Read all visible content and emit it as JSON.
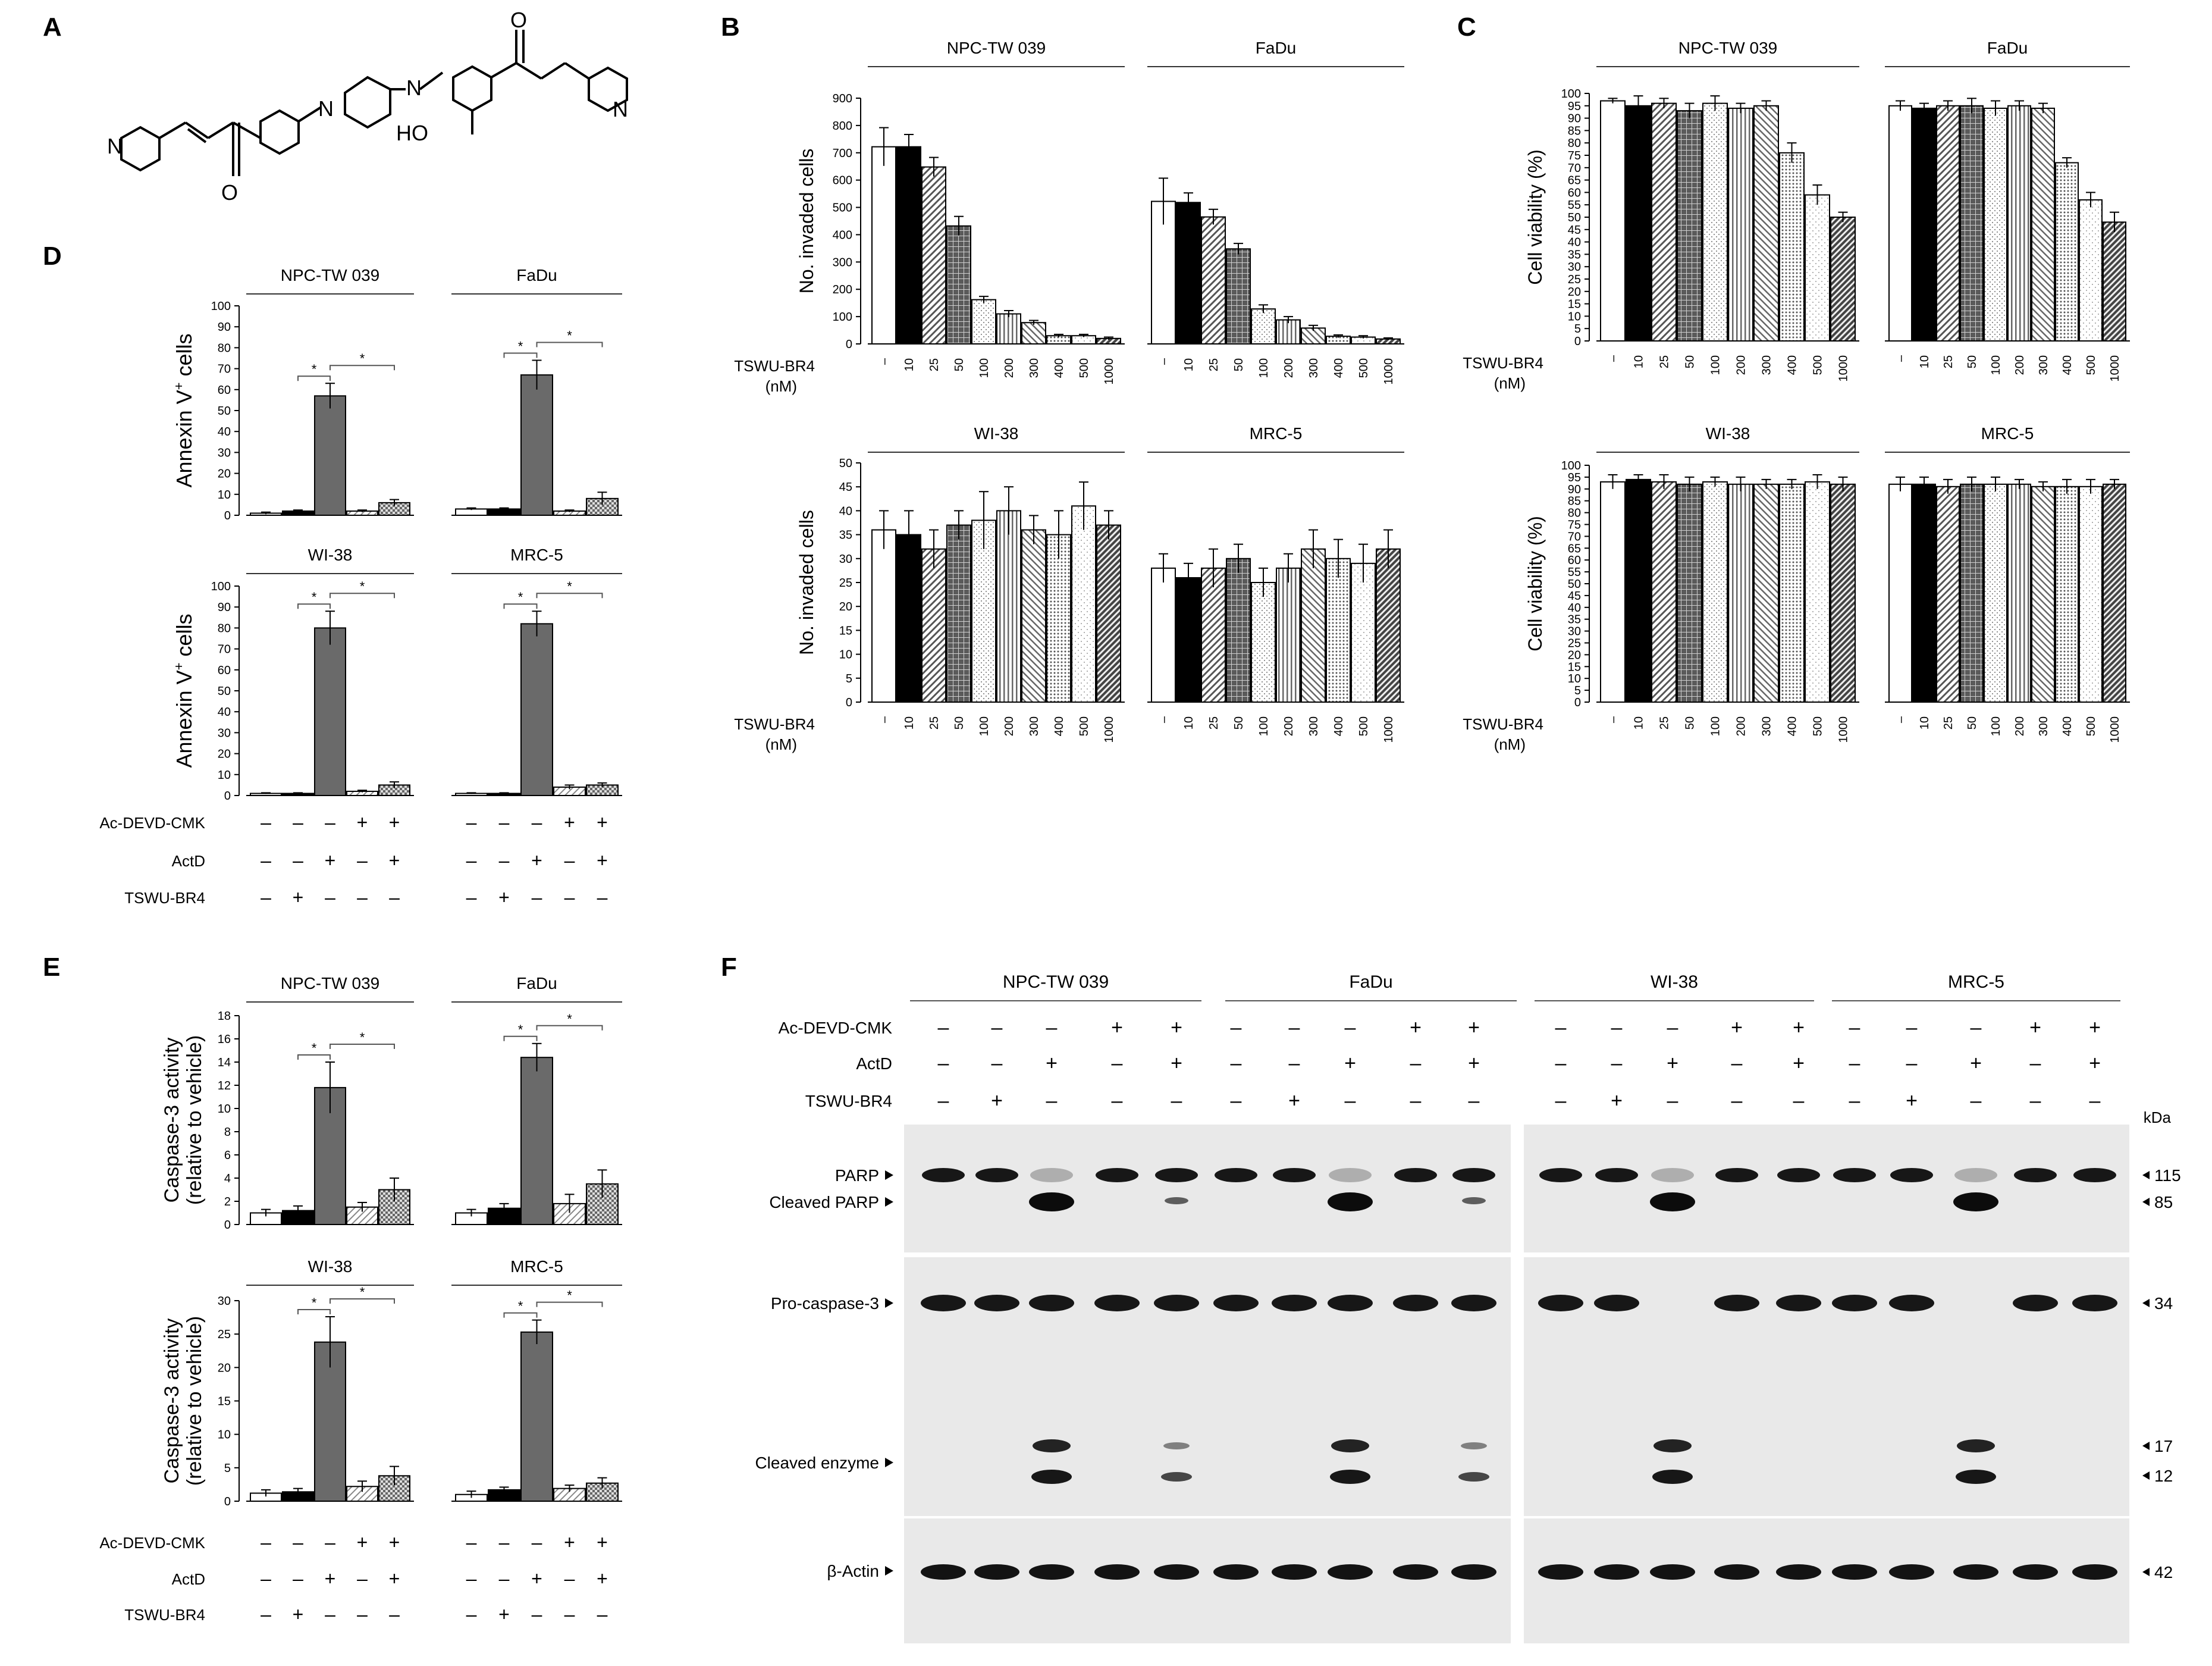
{
  "panel_letters": {
    "A": "A",
    "B": "B",
    "C": "C",
    "D": "D",
    "E": "E",
    "F": "F"
  },
  "molecule_atoms": {
    "N1": "N",
    "O1": "O",
    "N2": "N",
    "N3": "N",
    "HO": "HO",
    "O2": "O",
    "N4": "N"
  },
  "units": {
    "nM": "(nM)"
  },
  "kda_label": "kDa",
  "chart_data": [
    {
      "id": "B-top",
      "type": "bar",
      "ylabel": "No. invaded cells",
      "xlabel": "TSWU-BR4",
      "ylim": [
        0,
        900
      ],
      "ytick_step": 100,
      "categories": [
        "–",
        "10",
        "25",
        "50",
        "100",
        "200",
        "300",
        "400",
        "500",
        "1000"
      ],
      "groups": [
        {
          "name": "NPC-TW 039",
          "values": [
            722,
            722,
            648,
            432,
            162,
            110,
            78,
            30,
            30,
            20
          ],
          "errors": [
            70,
            45,
            35,
            35,
            12,
            12,
            8,
            5,
            5,
            5
          ]
        },
        {
          "name": "FaDu",
          "values": [
            522,
            518,
            465,
            348,
            128,
            88,
            58,
            28,
            25,
            18
          ],
          "errors": [
            85,
            35,
            28,
            20,
            15,
            12,
            10,
            5,
            5,
            4
          ]
        }
      ]
    },
    {
      "id": "B-bottom",
      "type": "bar",
      "ylabel": "No. invaded cells",
      "xlabel": "TSWU-BR4",
      "ylim": [
        0,
        50
      ],
      "ytick_step": 5,
      "categories": [
        "–",
        "10",
        "25",
        "50",
        "100",
        "200",
        "300",
        "400",
        "500",
        "1000"
      ],
      "groups": [
        {
          "name": "WI-38",
          "values": [
            36,
            35,
            32,
            37,
            38,
            40,
            36,
            35,
            41,
            37
          ],
          "errors": [
            4,
            5,
            4,
            3,
            6,
            5,
            3,
            5,
            5,
            3
          ]
        },
        {
          "name": "MRC-5",
          "values": [
            28,
            26,
            28,
            30,
            25,
            28,
            32,
            30,
            29,
            32
          ],
          "errors": [
            3,
            3,
            4,
            3,
            3,
            3,
            4,
            4,
            4,
            4
          ]
        }
      ]
    },
    {
      "id": "C-top",
      "type": "bar",
      "ylabel": "Cell viability (%)",
      "xlabel": "TSWU-BR4",
      "ylim": [
        0,
        100
      ],
      "ytick_step": 5,
      "categories": [
        "–",
        "10",
        "25",
        "50",
        "100",
        "200",
        "300",
        "400",
        "500",
        "1000"
      ],
      "groups": [
        {
          "name": "NPC-TW 039",
          "values": [
            97,
            95,
            96,
            93,
            96,
            94,
            95,
            76,
            59,
            50
          ],
          "errors": [
            1,
            4,
            2,
            3,
            3,
            2,
            2,
            4,
            4,
            2
          ]
        },
        {
          "name": "FaDu",
          "values": [
            95,
            94,
            95,
            95,
            94,
            95,
            94,
            72,
            57,
            48
          ],
          "errors": [
            2,
            2,
            2,
            3,
            3,
            2,
            2,
            2,
            3,
            4
          ]
        }
      ]
    },
    {
      "id": "C-bottom",
      "type": "bar",
      "ylabel": "Cell viability (%)",
      "xlabel": "TSWU-BR4",
      "ylim": [
        0,
        100
      ],
      "ytick_step": 5,
      "categories": [
        "–",
        "10",
        "25",
        "50",
        "100",
        "200",
        "300",
        "400",
        "500",
        "1000"
      ],
      "groups": [
        {
          "name": "WI-38",
          "values": [
            93,
            94,
            93,
            92,
            93,
            92,
            92,
            92,
            93,
            92
          ],
          "errors": [
            3,
            2,
            3,
            3,
            2,
            3,
            2,
            2,
            3,
            3
          ]
        },
        {
          "name": "MRC-5",
          "values": [
            92,
            92,
            91,
            92,
            92,
            92,
            91,
            91,
            91,
            92
          ],
          "errors": [
            3,
            3,
            3,
            3,
            3,
            2,
            2,
            3,
            3,
            2
          ]
        }
      ]
    },
    {
      "id": "D-top",
      "type": "bar",
      "ylabel": "Annexin V+ cells",
      "ylim": [
        0,
        100
      ],
      "ytick_step": 10,
      "groups": [
        {
          "name": "NPC-TW 039",
          "values": [
            1,
            2,
            57,
            2,
            6
          ],
          "errors": [
            0.5,
            0.5,
            6,
            0.5,
            1.5
          ]
        },
        {
          "name": "FaDu",
          "values": [
            3,
            3,
            67,
            2,
            8
          ],
          "errors": [
            0.5,
            0.5,
            7,
            0.5,
            3
          ]
        }
      ]
    },
    {
      "id": "D-bottom",
      "type": "bar",
      "ylabel": "Annexin V+ cells",
      "ylim": [
        0,
        100
      ],
      "ytick_step": 10,
      "groups": [
        {
          "name": "WI-38",
          "values": [
            1,
            1,
            80,
            2,
            5
          ],
          "errors": [
            0.3,
            0.3,
            8,
            0.5,
            1.5
          ]
        },
        {
          "name": "MRC-5",
          "values": [
            1,
            1,
            82,
            4,
            5
          ],
          "errors": [
            0.3,
            0.3,
            6,
            1,
            1
          ]
        }
      ]
    },
    {
      "id": "E-top",
      "type": "bar",
      "ylabel": "Caspase-3 activity (relative to vehicle)",
      "ylim": [
        0,
        18
      ],
      "ytick_step": 2,
      "groups": [
        {
          "name": "NPC-TW 039",
          "values": [
            1,
            1.2,
            11.8,
            1.5,
            3
          ],
          "errors": [
            0.3,
            0.4,
            2.2,
            0.4,
            1
          ]
        },
        {
          "name": "FaDu",
          "values": [
            1,
            1.4,
            14.4,
            1.8,
            3.5
          ],
          "errors": [
            0.3,
            0.4,
            1.2,
            0.8,
            1.2
          ]
        }
      ]
    },
    {
      "id": "E-bottom",
      "type": "bar",
      "ylabel": "Caspase-3 activity (relative to vehicle)",
      "ylim": [
        0,
        30
      ],
      "ytick_step": 5,
      "groups": [
        {
          "name": "WI-38",
          "values": [
            1.2,
            1.4,
            23.8,
            2.2,
            3.8
          ],
          "errors": [
            0.5,
            0.5,
            3.8,
            0.8,
            1.4
          ]
        },
        {
          "name": "MRC-5",
          "values": [
            1,
            1.7,
            25.3,
            1.9,
            2.7
          ],
          "errors": [
            0.5,
            0.4,
            1.8,
            0.5,
            0.8
          ]
        }
      ]
    }
  ],
  "treatment_table": {
    "rows": [
      "Ac-DEVD-CMK",
      "ActD",
      "TSWU-BR4"
    ],
    "signs": [
      [
        "–",
        "–",
        "–",
        "+",
        "+"
      ],
      [
        "–",
        "–",
        "+",
        "–",
        "+"
      ],
      [
        "–",
        "+",
        "–",
        "–",
        "–"
      ]
    ]
  },
  "western_blot": {
    "cell_lines": [
      "NPC-TW 039",
      "FaDu",
      "WI-38",
      "MRC-5"
    ],
    "bands": [
      "PARP",
      "Cleaved PARP",
      "Pro-caspase-3",
      "Cleaved enzyme",
      "β-Actin"
    ],
    "kda": [
      "115",
      "85",
      "34",
      "17",
      "12",
      "42"
    ]
  }
}
